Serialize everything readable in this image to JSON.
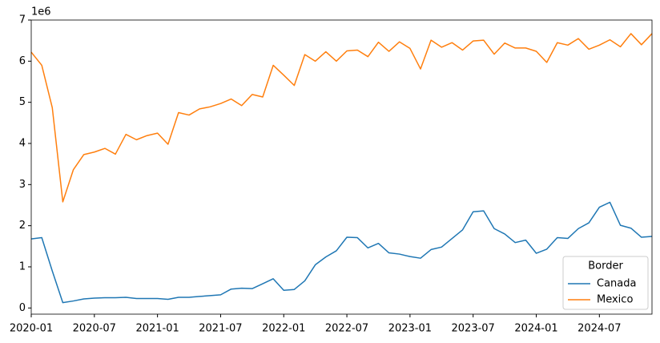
{
  "chart_data": {
    "type": "line",
    "y_offset_label": "1e6",
    "legend_title": "Border",
    "legend_loc": "lower right",
    "x": [
      "2020-01",
      "2020-02",
      "2020-03",
      "2020-04",
      "2020-05",
      "2020-06",
      "2020-07",
      "2020-08",
      "2020-09",
      "2020-10",
      "2020-11",
      "2020-12",
      "2021-01",
      "2021-02",
      "2021-03",
      "2021-04",
      "2021-05",
      "2021-06",
      "2021-07",
      "2021-08",
      "2021-09",
      "2021-10",
      "2021-11",
      "2021-12",
      "2022-01",
      "2022-02",
      "2022-03",
      "2022-04",
      "2022-05",
      "2022-06",
      "2022-07",
      "2022-08",
      "2022-09",
      "2022-10",
      "2022-11",
      "2022-12",
      "2023-01",
      "2023-02",
      "2023-03",
      "2023-04",
      "2023-05",
      "2023-06",
      "2023-07",
      "2023-08",
      "2023-09",
      "2023-10",
      "2023-11",
      "2023-12",
      "2024-01",
      "2024-02",
      "2024-03",
      "2024-04",
      "2024-05",
      "2024-06",
      "2024-07",
      "2024-08",
      "2024-09",
      "2024-10",
      "2024-11",
      "2024-12"
    ],
    "xlim": [
      "2020-01",
      "2024-12"
    ],
    "xticks": [
      "2020-01",
      "2020-07",
      "2021-01",
      "2021-07",
      "2022-01",
      "2022-07",
      "2023-01",
      "2023-07",
      "2024-01",
      "2024-07"
    ],
    "ylim": [
      -0.15,
      7
    ],
    "yticks": [
      0,
      1,
      2,
      3,
      4,
      5,
      6,
      7
    ],
    "series": [
      {
        "name": "Canada",
        "color": "#1f77b4",
        "values": [
          1.68,
          1.71,
          0.9,
          0.13,
          0.17,
          0.22,
          0.24,
          0.25,
          0.25,
          0.26,
          0.23,
          0.23,
          0.23,
          0.21,
          0.26,
          0.26,
          0.28,
          0.3,
          0.32,
          0.46,
          0.48,
          0.47,
          0.59,
          0.71,
          0.43,
          0.45,
          0.66,
          1.05,
          1.24,
          1.39,
          1.72,
          1.71,
          1.46,
          1.57,
          1.34,
          1.31,
          1.25,
          1.21,
          1.42,
          1.48,
          1.69,
          1.9,
          2.34,
          2.36,
          1.93,
          1.8,
          1.59,
          1.65,
          1.33,
          1.43,
          1.71,
          1.69,
          1.93,
          2.07,
          2.45,
          2.57,
          2.01,
          1.94,
          1.72,
          1.74
        ]
      },
      {
        "name": "Mexico",
        "color": "#ff7f0e",
        "values": [
          6.22,
          5.9,
          4.87,
          2.58,
          3.36,
          3.73,
          3.79,
          3.88,
          3.74,
          4.22,
          4.09,
          4.19,
          4.25,
          3.98,
          4.75,
          4.69,
          4.84,
          4.89,
          4.97,
          5.08,
          4.92,
          5.19,
          5.13,
          5.9,
          5.66,
          5.41,
          6.16,
          6.0,
          6.23,
          6.0,
          6.25,
          6.27,
          6.11,
          6.46,
          6.24,
          6.47,
          6.31,
          5.81,
          6.51,
          6.34,
          6.45,
          6.27,
          6.49,
          6.51,
          6.17,
          6.44,
          6.32,
          6.32,
          6.24,
          5.97,
          6.45,
          6.39,
          6.55,
          6.29,
          6.39,
          6.52,
          6.35,
          6.67,
          6.4,
          6.67
        ]
      }
    ]
  }
}
